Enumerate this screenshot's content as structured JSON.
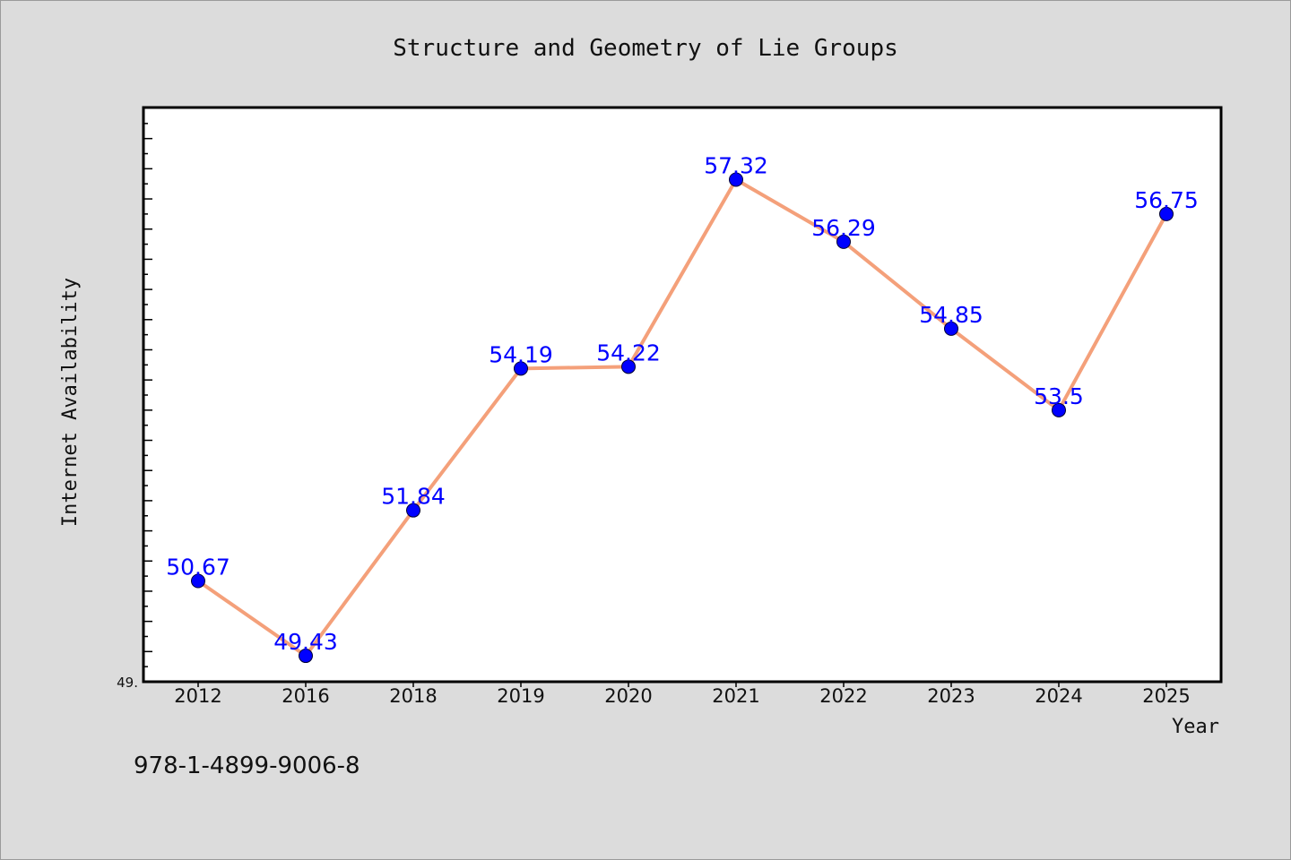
{
  "chart_data": {
    "type": "line",
    "title": "Structure and Geometry of Lie Groups",
    "xlabel": "Year",
    "ylabel": "Internet Availability",
    "categories": [
      "2012",
      "2016",
      "2018",
      "2019",
      "2020",
      "2021",
      "2022",
      "2023",
      "2024",
      "2025"
    ],
    "series": [
      {
        "values": [
          50.67,
          49.43,
          51.84,
          54.19,
          54.22,
          57.32,
          56.29,
          54.85,
          53.5,
          56.75
        ],
        "point_labels": [
          "50.67",
          "49.43",
          "51.84",
          "54.19",
          "54.22",
          "57.32",
          "56.29",
          "54.85",
          "53.5",
          "56.75"
        ],
        "line_color": "#f4a07a",
        "marker_color": "#0000ff"
      }
    ],
    "y_tick_labels": [
      "49."
    ],
    "ylim": [
      49.0,
      58.5
    ],
    "grid": false,
    "footer_text": "978-1-4899-9006-8",
    "colors": {
      "background": "#dcdcdc",
      "plot_background": "#ffffff",
      "label_color": "#0000ff"
    }
  }
}
